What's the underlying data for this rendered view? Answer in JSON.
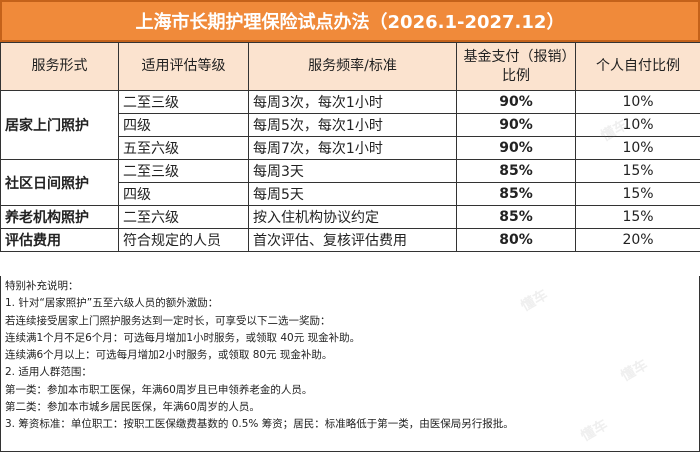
{
  "title": "上海市长期护理保险试点办法（2026.1-2027.12）",
  "headers": {
    "form": "服务形式",
    "level": "适用评估等级",
    "frequency": "服务频率/标准",
    "fund": "基金支付（报销）比例",
    "self": "个人自付比例"
  },
  "rows": [
    {
      "form": "居家上门照护",
      "level": "二至三级",
      "frequency": "每周3次，每次1小时",
      "fund": "90%",
      "self": "10%"
    },
    {
      "level": "四级",
      "frequency": "每周5次，每次1小时",
      "fund": "90%",
      "self": "10%"
    },
    {
      "level": "五至六级",
      "frequency": "每周7次，每次1小时",
      "fund": "90%",
      "self": "10%"
    },
    {
      "form": "社区日间照护",
      "level": "二至三级",
      "frequency": "每周3天",
      "fund": "85%",
      "self": "15%"
    },
    {
      "level": "四级",
      "frequency": "每周5天",
      "fund": "85%",
      "self": "15%"
    },
    {
      "form": "养老机构照护",
      "level": "二至六级",
      "frequency": "按入住机构协议约定",
      "fund": "85%",
      "self": "15%"
    },
    {
      "form": "评估费用",
      "level": "符合规定的人员",
      "frequency": "首次评估、复核评估费用",
      "fund": "80%",
      "self": "20%"
    }
  ],
  "notes": [
    "特别补充说明：",
    "1. 针对“居家照护”五至六级人员的额外激励：",
    "若连续接受居家上门照护服务达到一定时长，可享受以下二选一奖励：",
    "连续满1个月不足6个月：可选每月增加1小时服务，或领取 40元 现金补助。",
    "连续满6个月以上：可选每月增加2小时服务，或领取 80元 现金补助。",
    "2. 适用人群范围：",
    "第一类：参加本市职工医保，年满60周岁且已申领养老金的人员。",
    "第二类：参加本市城乡居民医保，年满60周岁的人员。",
    "3. 筹资标准：单位职工：按职工医保缴费基数的 0.5% 筹资；居民：标准略低于第一类，由医保局另行报批。"
  ],
  "watermark": "懂车"
}
